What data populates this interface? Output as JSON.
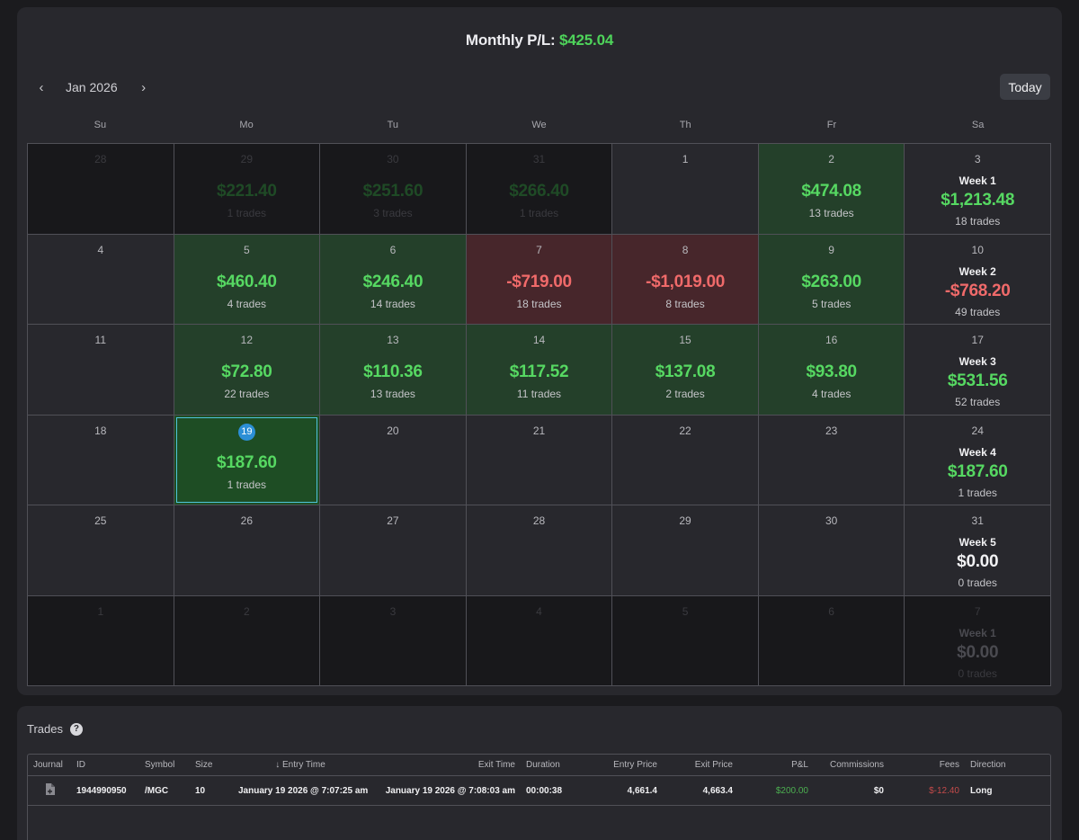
{
  "header": {
    "monthly_label": "Monthly P/L:",
    "monthly_value": "$425.04"
  },
  "nav": {
    "prev_icon": "‹",
    "month": "Jan 2026",
    "next_icon": "›",
    "today_label": "Today"
  },
  "weekdays": [
    "Su",
    "Mo",
    "Tu",
    "We",
    "Th",
    "Fr",
    "Sa"
  ],
  "rows": [
    [
      {
        "day": "28",
        "type": "out"
      },
      {
        "day": "29",
        "type": "out",
        "amount": "$221.40",
        "trades": "1 trades"
      },
      {
        "day": "30",
        "type": "out",
        "amount": "$251.60",
        "trades": "3 trades"
      },
      {
        "day": "31",
        "type": "out",
        "amount": "$266.40",
        "trades": "1 trades"
      },
      {
        "day": "1",
        "type": "plain"
      },
      {
        "day": "2",
        "type": "pos",
        "amount": "$474.08",
        "trades": "13 trades"
      },
      {
        "day": "3",
        "type": "week",
        "week": "Week 1",
        "amount": "$1,213.48",
        "trades": "18 trades",
        "sign": "pos"
      }
    ],
    [
      {
        "day": "4",
        "type": "plain"
      },
      {
        "day": "5",
        "type": "pos",
        "amount": "$460.40",
        "trades": "4 trades"
      },
      {
        "day": "6",
        "type": "pos",
        "amount": "$246.40",
        "trades": "14 trades"
      },
      {
        "day": "7",
        "type": "neg",
        "amount": "-$719.00",
        "trades": "18 trades"
      },
      {
        "day": "8",
        "type": "neg",
        "amount": "-$1,019.00",
        "trades": "8 trades"
      },
      {
        "day": "9",
        "type": "pos",
        "amount": "$263.00",
        "trades": "5 trades"
      },
      {
        "day": "10",
        "type": "week",
        "week": "Week 2",
        "amount": "-$768.20",
        "trades": "49 trades",
        "sign": "neg"
      }
    ],
    [
      {
        "day": "11",
        "type": "plain"
      },
      {
        "day": "12",
        "type": "pos",
        "amount": "$72.80",
        "trades": "22 trades"
      },
      {
        "day": "13",
        "type": "pos",
        "amount": "$110.36",
        "trades": "13 trades"
      },
      {
        "day": "14",
        "type": "pos",
        "amount": "$117.52",
        "trades": "11 trades"
      },
      {
        "day": "15",
        "type": "pos",
        "amount": "$137.08",
        "trades": "2 trades"
      },
      {
        "day": "16",
        "type": "pos",
        "amount": "$93.80",
        "trades": "4 trades"
      },
      {
        "day": "17",
        "type": "week",
        "week": "Week 3",
        "amount": "$531.56",
        "trades": "52 trades",
        "sign": "pos"
      }
    ],
    [
      {
        "day": "18",
        "type": "plain"
      },
      {
        "day": "19",
        "type": "today",
        "amount": "$187.60",
        "trades": "1 trades"
      },
      {
        "day": "20",
        "type": "plain"
      },
      {
        "day": "21",
        "type": "plain"
      },
      {
        "day": "22",
        "type": "plain"
      },
      {
        "day": "23",
        "type": "plain"
      },
      {
        "day": "24",
        "type": "week",
        "week": "Week 4",
        "amount": "$187.60",
        "trades": "1 trades",
        "sign": "pos"
      }
    ],
    [
      {
        "day": "25",
        "type": "plain"
      },
      {
        "day": "26",
        "type": "plain"
      },
      {
        "day": "27",
        "type": "plain"
      },
      {
        "day": "28",
        "type": "plain"
      },
      {
        "day": "29",
        "type": "plain"
      },
      {
        "day": "30",
        "type": "plain"
      },
      {
        "day": "31",
        "type": "week",
        "week": "Week 5",
        "amount": "$0.00",
        "trades": "0 trades",
        "sign": "zero"
      }
    ],
    [
      {
        "day": "1",
        "type": "out"
      },
      {
        "day": "2",
        "type": "out"
      },
      {
        "day": "3",
        "type": "out"
      },
      {
        "day": "4",
        "type": "out"
      },
      {
        "day": "5",
        "type": "out"
      },
      {
        "day": "6",
        "type": "out"
      },
      {
        "day": "7",
        "type": "week-out",
        "week": "Week 1",
        "amount": "$0.00",
        "trades": "0 trades",
        "sign": "zero"
      }
    ]
  ],
  "trades": {
    "title": "Trades",
    "help_icon": "?",
    "columns": [
      "Journal",
      "ID",
      "Symbol",
      "Size",
      "Entry Time",
      "Exit Time",
      "Duration",
      "Entry Price",
      "Exit Price",
      "P&L",
      "Commissions",
      "Fees",
      "Direction"
    ],
    "sort_icon": "↓",
    "rows": [
      {
        "id": "1944990950",
        "symbol": "/MGC",
        "size": "10",
        "entry_time": "January 19 2026 @ 7:07:25 am",
        "exit_time": "January 19 2026 @ 7:08:03 am",
        "duration": "00:00:38",
        "entry_price": "4,661.4",
        "exit_price": "4,663.4",
        "pnl": "$200.00",
        "commissions": "$0",
        "fees": "$-12.40",
        "direction": "Long"
      }
    ]
  },
  "colors": {
    "green": "#56d862",
    "red": "#f06a6a",
    "accent": "#2c8fd6"
  }
}
